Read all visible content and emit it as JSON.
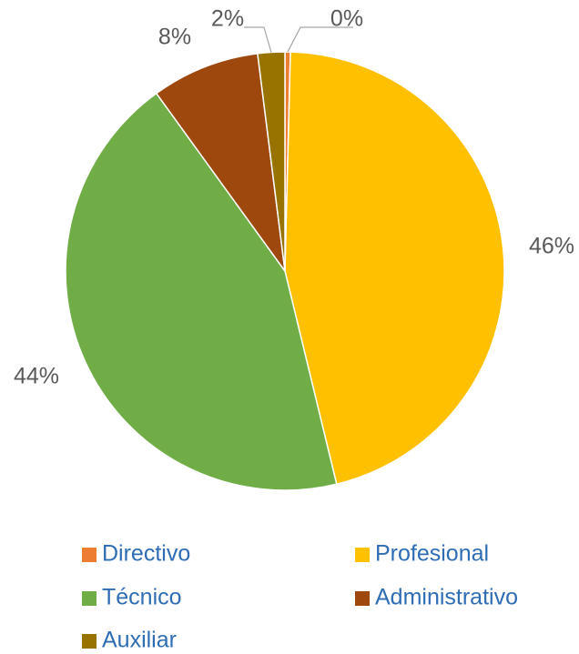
{
  "chart_data": {
    "type": "pie",
    "categories": [
      "Directivo",
      "Profesional",
      "Técnico",
      "Administrativo",
      "Auxiliar"
    ],
    "values": [
      0.4,
      46,
      44,
      8,
      2
    ],
    "value_labels": [
      "0%",
      "46%",
      "44%",
      "8%",
      "2%"
    ],
    "colors": [
      "#ED7D31",
      "#FFC000",
      "#70AD47",
      "#9E480E",
      "#997300"
    ],
    "legend": "bottom"
  }
}
